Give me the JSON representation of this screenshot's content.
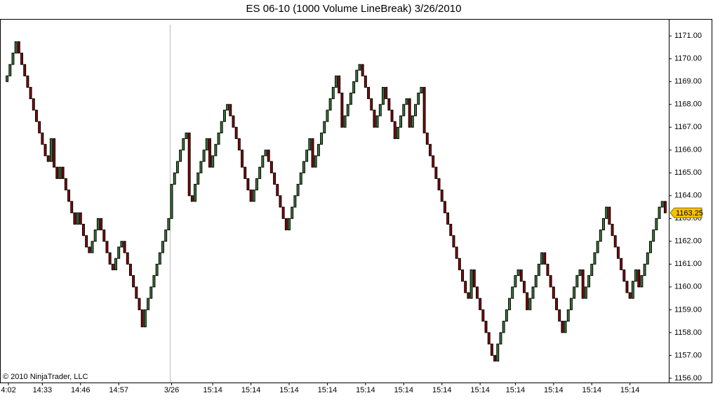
{
  "chart_data": {
    "type": "linebreak",
    "title": "ES 06-10 (1000 Volume LineBreak)  3/26/2010",
    "copyright": "© 2010 NinjaTrader, LLC",
    "up_color": "#3c7a3c",
    "down_color": "#8b0000",
    "open": 1169.0,
    "values": [
      1169.25,
      1169.75,
      1170.25,
      1170.75,
      1170.25,
      1169.75,
      1169.25,
      1168.75,
      1168.25,
      1167.75,
      1167.25,
      1166.75,
      1166.25,
      1165.75,
      1165.5,
      1166.5,
      1165.25,
      1164.75,
      1165.25,
      1164.75,
      1164.25,
      1163.75,
      1163.25,
      1162.75,
      1163.25,
      1162.75,
      1162.25,
      1161.75,
      1161.5,
      1162.0,
      1162.5,
      1163.0,
      1162.5,
      1162.0,
      1161.5,
      1161.0,
      1160.75,
      1161.25,
      1161.75,
      1162.0,
      1161.5,
      1161.0,
      1160.5,
      1160.0,
      1159.5,
      1159.0,
      1158.25,
      1159.0,
      1159.5,
      1160.0,
      1160.5,
      1161.0,
      1161.5,
      1162.0,
      1162.5,
      1163.0,
      1164.5,
      1165.0,
      1165.5,
      1166.0,
      1166.5,
      1166.75,
      1164.0,
      1163.75,
      1164.5,
      1165.0,
      1165.5,
      1166.0,
      1166.5,
      1165.25,
      1165.75,
      1166.25,
      1166.75,
      1167.25,
      1167.75,
      1168.0,
      1167.5,
      1167.0,
      1166.5,
      1166.0,
      1165.25,
      1164.75,
      1164.25,
      1163.75,
      1164.25,
      1164.75,
      1165.25,
      1165.75,
      1166.0,
      1165.5,
      1165.0,
      1164.5,
      1164.0,
      1163.5,
      1163.0,
      1162.5,
      1163.0,
      1163.5,
      1164.0,
      1164.5,
      1165.0,
      1165.5,
      1166.0,
      1166.5,
      1165.25,
      1165.75,
      1166.25,
      1166.75,
      1167.25,
      1167.75,
      1168.25,
      1168.75,
      1169.25,
      1168.5,
      1167.0,
      1167.5,
      1168.0,
      1168.5,
      1169.0,
      1169.5,
      1169.75,
      1169.25,
      1168.75,
      1168.25,
      1167.75,
      1167.0,
      1167.5,
      1168.0,
      1168.75,
      1168.25,
      1167.75,
      1167.25,
      1166.5,
      1167.0,
      1167.5,
      1168.0,
      1168.25,
      1167.0,
      1167.5,
      1168.0,
      1168.5,
      1168.75,
      1166.75,
      1166.25,
      1165.75,
      1165.25,
      1164.75,
      1164.25,
      1163.75,
      1163.25,
      1162.75,
      1162.25,
      1161.75,
      1161.25,
      1160.75,
      1160.25,
      1159.75,
      1159.5,
      1160.75,
      1160.0,
      1159.5,
      1159.0,
      1158.5,
      1158.0,
      1157.5,
      1157.0,
      1156.75,
      1157.5,
      1158.0,
      1158.5,
      1159.0,
      1159.5,
      1160.0,
      1160.5,
      1160.75,
      1160.25,
      1159.75,
      1159.0,
      1159.5,
      1160.0,
      1160.5,
      1161.0,
      1161.5,
      1161.0,
      1160.5,
      1160.0,
      1159.5,
      1159.0,
      1158.5,
      1158.0,
      1158.5,
      1159.0,
      1159.5,
      1160.0,
      1160.5,
      1160.75,
      1159.5,
      1160.0,
      1160.5,
      1161.0,
      1161.5,
      1162.0,
      1162.5,
      1163.0,
      1163.5,
      1162.75,
      1162.25,
      1161.75,
      1161.25,
      1160.75,
      1160.25,
      1159.75,
      1159.5,
      1160.25,
      1160.75,
      1160.0,
      1160.5,
      1161.0,
      1161.5,
      1162.0,
      1162.5,
      1163.0,
      1163.5,
      1163.75,
      1163.25
    ],
    "xlim": [
      0,
      225
    ],
    "xticks": [
      {
        "value": 0,
        "label": "4:02"
      },
      {
        "value": 12,
        "label": "14:33"
      },
      {
        "value": 25,
        "label": "14:46"
      },
      {
        "value": 38,
        "label": "14:57"
      },
      {
        "value": 56,
        "label": "3/26"
      },
      {
        "value": 70,
        "label": "15:14"
      },
      {
        "value": 83,
        "label": "15:14"
      },
      {
        "value": 96,
        "label": "15:14"
      },
      {
        "value": 109,
        "label": "15:14"
      },
      {
        "value": 122,
        "label": "15:14"
      },
      {
        "value": 135,
        "label": "15:14"
      },
      {
        "value": 148,
        "label": "15:14"
      },
      {
        "value": 161,
        "label": "15:14"
      },
      {
        "value": 173,
        "label": "15:14"
      },
      {
        "value": 186,
        "label": "15:14"
      },
      {
        "value": 199,
        "label": "15:14"
      },
      {
        "value": 212,
        "label": "15:14"
      }
    ],
    "ylim": [
      1155.75,
      1171.5
    ],
    "yticks": [
      {
        "value": 1156,
        "label": "1156.00"
      },
      {
        "value": 1157,
        "label": "1157.00"
      },
      {
        "value": 1158,
        "label": "1158.00"
      },
      {
        "value": 1159,
        "label": "1159.00"
      },
      {
        "value": 1160,
        "label": "1160.00"
      },
      {
        "value": 1161,
        "label": "1161.00"
      },
      {
        "value": 1162,
        "label": "1162.00"
      },
      {
        "value": 1163,
        "label": "1163.00"
      },
      {
        "value": 1164,
        "label": "1164.00"
      },
      {
        "value": 1165,
        "label": "1165.00"
      },
      {
        "value": 1166,
        "label": "1166.00"
      },
      {
        "value": 1167,
        "label": "1167.00"
      },
      {
        "value": 1168,
        "label": "1168.00"
      },
      {
        "value": 1169,
        "label": "1169.00"
      },
      {
        "value": 1170,
        "label": "1170.00"
      },
      {
        "value": 1171,
        "label": "1171.00"
      }
    ]
  }
}
